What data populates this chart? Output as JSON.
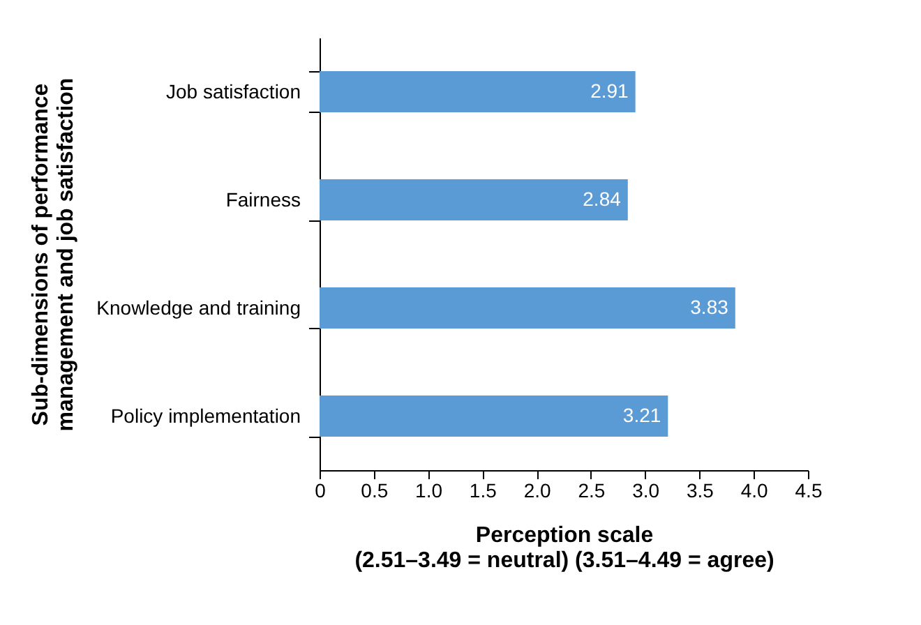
{
  "chart_data": {
    "type": "bar",
    "orientation": "horizontal",
    "categories": [
      "Job satisfaction",
      "Fairness",
      "Knowledge and training",
      "Policy implementation"
    ],
    "values": [
      2.91,
      2.84,
      3.83,
      3.21
    ],
    "color": "#5b9bd5",
    "data_labels": true,
    "xlim": [
      0,
      4.5
    ],
    "xticks": [
      0,
      {
        "value": 0.5,
        "label": "0.5"
      },
      {
        "value": 1,
        "label": "1.0"
      },
      {
        "value": 1.5,
        "label": "1.5"
      },
      {
        "value": 2,
        "label": "2.0"
      },
      {
        "value": 2.5,
        "label": "2.5"
      },
      {
        "value": 3,
        "label": "3.0"
      },
      {
        "value": 3.5,
        "label": "3.5"
      },
      {
        "value": 4,
        "label": "4.0"
      },
      {
        "value": 4.5,
        "label": "4.5"
      }
    ],
    "xlabel": "Perception scale\n(2.51–3.49 = neutral) (3.51–4.49 = agree)",
    "ylabel": "Sub-dimensions of performance\nmanagement and job satisfaction",
    "grid": false
  }
}
